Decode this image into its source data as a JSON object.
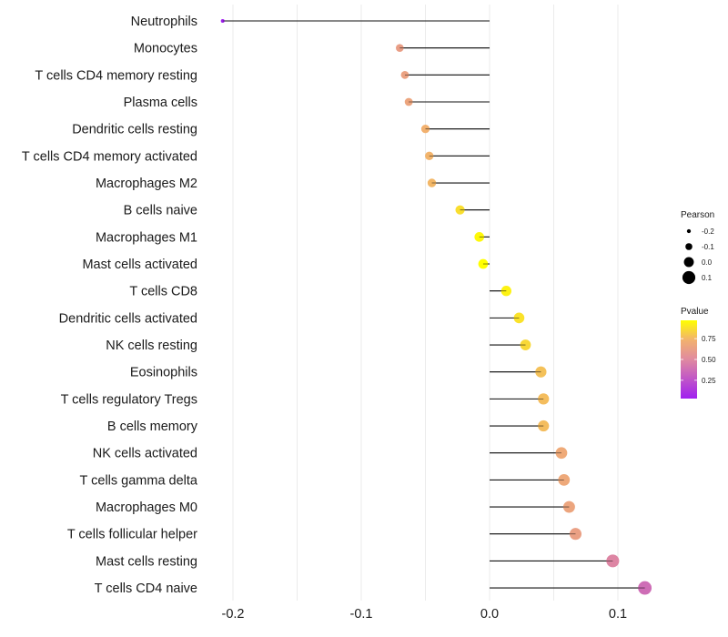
{
  "chart_data": {
    "type": "lollipop",
    "title": "",
    "xlabel": "",
    "ylabel": "",
    "xlim": [
      -0.21,
      0.125
    ],
    "x_ticks": [
      -0.2,
      -0.1,
      0.0,
      0.1
    ],
    "x_tick_labels": [
      "-0.2",
      "-0.1",
      "0.0",
      "0.1"
    ],
    "grid": true,
    "categories": [
      "Neutrophils",
      "Monocytes",
      "T cells CD4 memory resting",
      "Plasma cells",
      "Dendritic cells resting",
      "T cells CD4 memory activated",
      "Macrophages M2",
      "B cells naive",
      "Macrophages M1",
      "Mast cells activated",
      "T cells CD8",
      "Dendritic cells activated",
      "NK cells resting",
      "Eosinophils",
      "T cells regulatory  Tregs ",
      "B cells memory",
      "NK cells activated",
      "T cells gamma delta",
      "Macrophages M0",
      "T cells follicular helper",
      "Mast cells resting",
      "T cells CD4 naive"
    ],
    "pearson": [
      -0.208,
      -0.07,
      -0.066,
      -0.063,
      -0.05,
      -0.047,
      -0.045,
      -0.023,
      -0.008,
      -0.005,
      0.013,
      0.023,
      0.028,
      0.04,
      0.042,
      0.042,
      0.056,
      0.058,
      0.062,
      0.067,
      0.096,
      0.121
    ],
    "pvalue": [
      0.03,
      0.62,
      0.64,
      0.66,
      0.73,
      0.74,
      0.75,
      0.87,
      0.95,
      0.97,
      0.93,
      0.88,
      0.85,
      0.78,
      0.77,
      0.77,
      0.69,
      0.68,
      0.66,
      0.63,
      0.48,
      0.37
    ],
    "legend": {
      "size": {
        "title": "Pearson",
        "labels": [
          "-0.2",
          "-0.1",
          "0.0",
          "0.1"
        ],
        "values": [
          -0.2,
          -0.1,
          0.0,
          0.1
        ]
      },
      "color": {
        "title": "Pvalue",
        "labels": [
          "0.75",
          "0.50",
          "0.25"
        ],
        "values": [
          0.75,
          0.5,
          0.25
        ],
        "range": [
          0.03,
          0.97
        ],
        "low_color": "#A020F0",
        "mid_color": "#E6889A",
        "high_color": "#FFFF00"
      },
      "position": "right"
    }
  }
}
